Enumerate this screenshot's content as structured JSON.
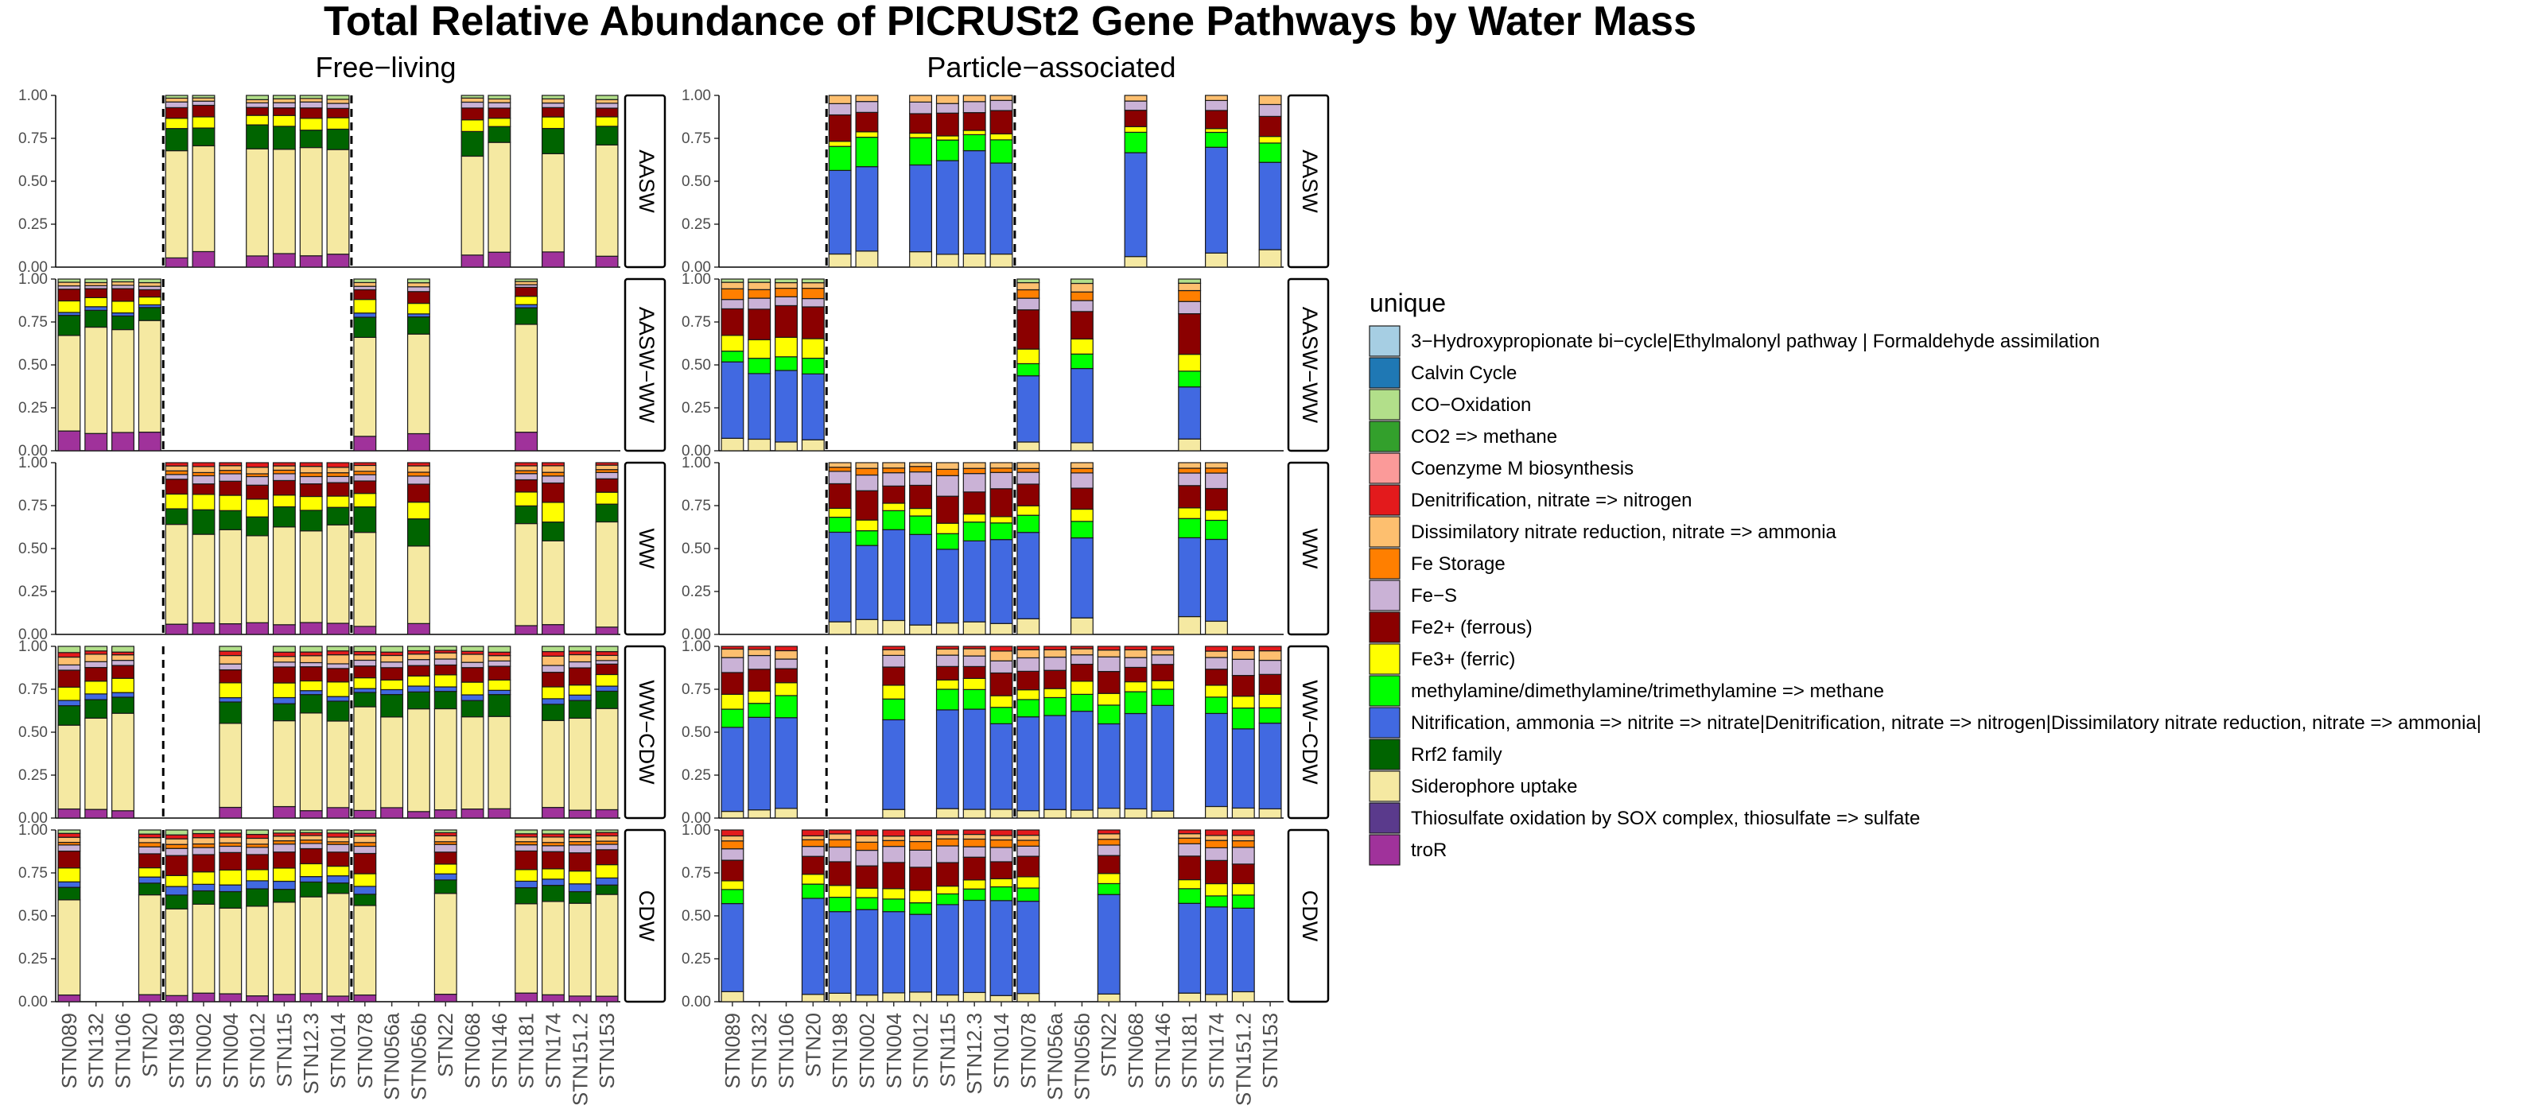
{
  "chart_data": {
    "type": "bar",
    "stacked": true,
    "title": "Total Relative Abundance of PICRUSt2 Gene Pathways by Water Mass",
    "columns": [
      "Free−living",
      "Particle−associated"
    ],
    "rows": [
      "AASW",
      "AASW−WW",
      "WW",
      "WW−CDW",
      "CDW"
    ],
    "categories": [
      "STN089",
      "STN132",
      "STN106",
      "STN20",
      "STN198",
      "STN002",
      "STN004",
      "STN012",
      "STN115",
      "STN12.3",
      "STN014",
      "STN078",
      "STN056a",
      "STN056b",
      "STN22",
      "STN068",
      "STN146",
      "STN181",
      "STN174",
      "STN151.2",
      "STN153"
    ],
    "ylim": [
      0,
      1
    ],
    "yticks": [
      "0.00",
      "0.25",
      "0.50",
      "0.75",
      "1.00"
    ],
    "legend_title": "unique",
    "legend_position": "right",
    "series": [
      {
        "name": "3−Hydroxypropionate bi−cycle|Ethylmalonyl pathway | Formaldehyde assimilation",
        "color": "#A6CEE3"
      },
      {
        "name": "Calvin Cycle",
        "color": "#1F78B4"
      },
      {
        "name": "CO−Oxidation",
        "color": "#B2DF8A"
      },
      {
        "name": "CO2 => methane",
        "color": "#33A02C"
      },
      {
        "name": "Coenzyme M biosynthesis",
        "color": "#FB9A99"
      },
      {
        "name": "Denitrification, nitrate => nitrogen",
        "color": "#E31A1C"
      },
      {
        "name": "Dissimilatory nitrate reduction, nitrate => ammonia",
        "color": "#FDBF6F"
      },
      {
        "name": "Fe Storage",
        "color": "#FF7F00"
      },
      {
        "name": "Fe−S",
        "color": "#CAB2D6"
      },
      {
        "name": "Fe2+ (ferrous)",
        "color": "#8B0000"
      },
      {
        "name": "Fe3+ (ferric)",
        "color": "#FFFF00"
      },
      {
        "name": "methylamine/dimethylamine/trimethylamine => methane",
        "color": "#00FF00"
      },
      {
        "name": "Nitrification,  ammonia => nitrite => nitrate|Denitrification, nitrate => nitrogen|Dissimilatory nitrate reduction, nitrate => ammonia|",
        "color": "#4169E1"
      },
      {
        "name": "Rrf2 family",
        "color": "#006400"
      },
      {
        "name": "Siderophore uptake",
        "color": "#F5E9A2"
      },
      {
        "name": "Thiosulfate oxidation by SOX complex, thiosulfate => sulfate",
        "color": "#5A3A8C"
      },
      {
        "name": "troR",
        "color": "#A0329B"
      }
    ],
    "presence": {
      "Free−living": {
        "AASW": [
          "STN198",
          "STN002",
          "STN012",
          "STN115",
          "STN12.3",
          "STN014",
          "STN068",
          "STN146",
          "STN174",
          "STN153"
        ],
        "AASW−WW": [
          "STN089",
          "STN132",
          "STN106",
          "STN20",
          "STN078",
          "STN056b",
          "STN181"
        ],
        "WW": [
          "STN198",
          "STN002",
          "STN004",
          "STN012",
          "STN115",
          "STN12.3",
          "STN014",
          "STN078",
          "STN056b",
          "STN181",
          "STN174",
          "STN153"
        ],
        "WW−CDW": [
          "STN089",
          "STN132",
          "STN106",
          "STN004",
          "STN115",
          "STN12.3",
          "STN014",
          "STN078",
          "STN056a",
          "STN056b",
          "STN22",
          "STN068",
          "STN146",
          "STN174",
          "STN151.2",
          "STN153"
        ],
        "CDW": [
          "STN089",
          "STN20",
          "STN198",
          "STN002",
          "STN004",
          "STN012",
          "STN115",
          "STN12.3",
          "STN014",
          "STN078",
          "STN22",
          "STN181",
          "STN174",
          "STN151.2",
          "STN153"
        ]
      },
      "Particle−associated": {
        "AASW": [
          "STN198",
          "STN002",
          "STN012",
          "STN115",
          "STN12.3",
          "STN014",
          "STN068",
          "STN174",
          "STN153"
        ],
        "AASW−WW": [
          "STN089",
          "STN132",
          "STN106",
          "STN20",
          "STN078",
          "STN056b",
          "STN181"
        ],
        "WW": [
          "STN198",
          "STN002",
          "STN004",
          "STN012",
          "STN115",
          "STN12.3",
          "STN014",
          "STN078",
          "STN056b",
          "STN181",
          "STN174"
        ],
        "WW−CDW": [
          "STN089",
          "STN132",
          "STN106",
          "STN004",
          "STN115",
          "STN12.3",
          "STN014",
          "STN078",
          "STN056a",
          "STN056b",
          "STN22",
          "STN068",
          "STN146",
          "STN174",
          "STN151.2",
          "STN153"
        ],
        "CDW": [
          "STN089",
          "STN20",
          "STN198",
          "STN002",
          "STN004",
          "STN012",
          "STN115",
          "STN12.3",
          "STN014",
          "STN078",
          "STN22",
          "STN181",
          "STN174",
          "STN151.2"
        ]
      }
    },
    "profiles": {
      "Free−living": {
        "AASW": {
          "troR": 0.08,
          "Siderophore uptake": 0.6,
          "Rrf2 family": 0.13,
          "Fe3+ (ferric)": 0.06,
          "Fe2+ (ferrous)": 0.06,
          "Fe−S": 0.03,
          "Dissimilatory nitrate reduction, nitrate => ammonia": 0.02,
          "CO−Oxidation": 0.02
        },
        "AASW−WW": {
          "troR": 0.1,
          "Siderophore uptake": 0.6,
          "Nitrification,  ammonia => nitrite => nitrate|Denitrification, nitrate => nitrogen|Dissimilatory nitrate reduction, nitrate => ammonia|": 0.02,
          "Rrf2 family": 0.1,
          "Fe3+ (ferric)": 0.06,
          "Fe2+ (ferrous)": 0.06,
          "Fe−S": 0.02,
          "Dissimilatory nitrate reduction, nitrate => ammonia": 0.02,
          "CO−Oxidation": 0.02
        },
        "WW": {
          "troR": 0.06,
          "Siderophore uptake": 0.55,
          "Rrf2 family": 0.12,
          "Fe3+ (ferric)": 0.08,
          "Fe2+ (ferrous)": 0.08,
          "Fe−S": 0.04,
          "Fe Storage": 0.02,
          "Dissimilatory nitrate reduction, nitrate => ammonia": 0.03,
          "Denitrification, nitrate => nitrogen": 0.02
        },
        "WW−CDW": {
          "troR": 0.05,
          "Siderophore uptake": 0.55,
          "Nitrification,  ammonia => nitrite => nitrate|Denitrification, nitrate => nitrogen|Dissimilatory nitrate reduction, nitrate => ammonia|": 0.03,
          "Rrf2 family": 0.1,
          "Fe3+ (ferric)": 0.07,
          "Fe2+ (ferrous)": 0.08,
          "Fe−S": 0.03,
          "Dissimilatory nitrate reduction, nitrate => ammonia": 0.04,
          "Denitrification, nitrate => nitrogen": 0.02,
          "CO−Oxidation": 0.03
        },
        "CDW": {
          "troR": 0.04,
          "Siderophore uptake": 0.55,
          "Nitrification,  ammonia => nitrite => nitrate|Denitrification, nitrate => nitrogen|Dissimilatory nitrate reduction, nitrate => ammonia|": 0.04,
          "Rrf2 family": 0.08,
          "Fe3+ (ferric)": 0.07,
          "Fe2+ (ferrous)": 0.09,
          "Fe−S": 0.04,
          "Fe Storage": 0.02,
          "Dissimilatory nitrate reduction, nitrate => ammonia": 0.03,
          "Denitrification, nitrate => nitrogen": 0.02,
          "CO−Oxidation": 0.02
        }
      },
      "Particle−associated": {
        "AASW": {
          "Siderophore uptake": 0.08,
          "Nitrification,  ammonia => nitrite => nitrate|Denitrification, nitrate => nitrogen|Dissimilatory nitrate reduction, nitrate => ammonia|": 0.55,
          "methylamine/dimethylamine/trimethylamine => methane": 0.12,
          "Fe3+ (ferric)": 0.03,
          "Fe2+ (ferrous)": 0.12,
          "Fe−S": 0.06,
          "Dissimilatory nitrate reduction, nitrate => ammonia": 0.04
        },
        "AASW−WW": {
          "Siderophore uptake": 0.06,
          "Nitrification,  ammonia => nitrite => nitrate|Denitrification, nitrate => nitrogen|Dissimilatory nitrate reduction, nitrate => ammonia|": 0.38,
          "methylamine/dimethylamine/trimethylamine => methane": 0.08,
          "Fe3+ (ferric)": 0.1,
          "Fe2+ (ferrous)": 0.2,
          "Fe−S": 0.06,
          "Fe Storage": 0.06,
          "Dissimilatory nitrate reduction, nitrate => ammonia": 0.04,
          "CO−Oxidation": 0.02
        },
        "WW": {
          "Siderophore uptake": 0.08,
          "Nitrification,  ammonia => nitrite => nitrate|Denitrification, nitrate => nitrogen|Dissimilatory nitrate reduction, nitrate => ammonia|": 0.48,
          "methylamine/dimethylamine/trimethylamine => methane": 0.1,
          "Fe3+ (ferric)": 0.05,
          "Fe2+ (ferrous)": 0.14,
          "Fe−S": 0.09,
          "Fe Storage": 0.03,
          "Dissimilatory nitrate reduction, nitrate => ammonia": 0.03
        },
        "WW−CDW": {
          "Siderophore uptake": 0.05,
          "Nitrification,  ammonia => nitrite => nitrate|Denitrification, nitrate => nitrogen|Dissimilatory nitrate reduction, nitrate => ammonia|": 0.55,
          "methylamine/dimethylamine/trimethylamine => methane": 0.1,
          "Fe3+ (ferric)": 0.07,
          "Fe2+ (ferrous)": 0.1,
          "Fe−S": 0.07,
          "Dissimilatory nitrate reduction, nitrate => ammonia": 0.04,
          "Denitrification, nitrate => nitrogen": 0.02
        },
        "CDW": {
          "Siderophore uptake": 0.05,
          "Nitrification,  ammonia => nitrite => nitrate|Denitrification, nitrate => nitrogen|Dissimilatory nitrate reduction, nitrate => ammonia|": 0.5,
          "methylamine/dimethylamine/trimethylamine => methane": 0.08,
          "Fe3+ (ferric)": 0.06,
          "Fe2+ (ferrous)": 0.13,
          "Fe−S": 0.08,
          "Fe Storage": 0.04,
          "Dissimilatory nitrate reduction, nitrate => ammonia": 0.03,
          "Denitrification, nitrate => nitrogen": 0.03
        }
      }
    },
    "dashed_separators": {
      "Free−living": {
        "AASW": [
          "STN20|STN198",
          "STN014|STN078"
        ],
        "AASW−WW": [
          "STN20|STN198",
          "STN014|STN078"
        ],
        "WW": [
          "STN20|STN198",
          "STN014|STN078"
        ],
        "WW−CDW": [
          "STN20|STN198",
          "STN014|STN078"
        ],
        "CDW": [
          "STN20|STN198",
          "STN014|STN078"
        ]
      },
      "Particle−associated": {
        "AASW": [
          "STN20|STN198",
          "STN014|STN078"
        ],
        "AASW−WW": [
          "STN20|STN198",
          "STN014|STN078"
        ],
        "WW": [
          "STN20|STN198",
          "STN014|STN078"
        ],
        "WW−CDW": [
          "STN20|STN198",
          "STN014|STN078"
        ],
        "CDW": [
          "STN20|STN198",
          "STN014|STN078"
        ]
      }
    }
  }
}
